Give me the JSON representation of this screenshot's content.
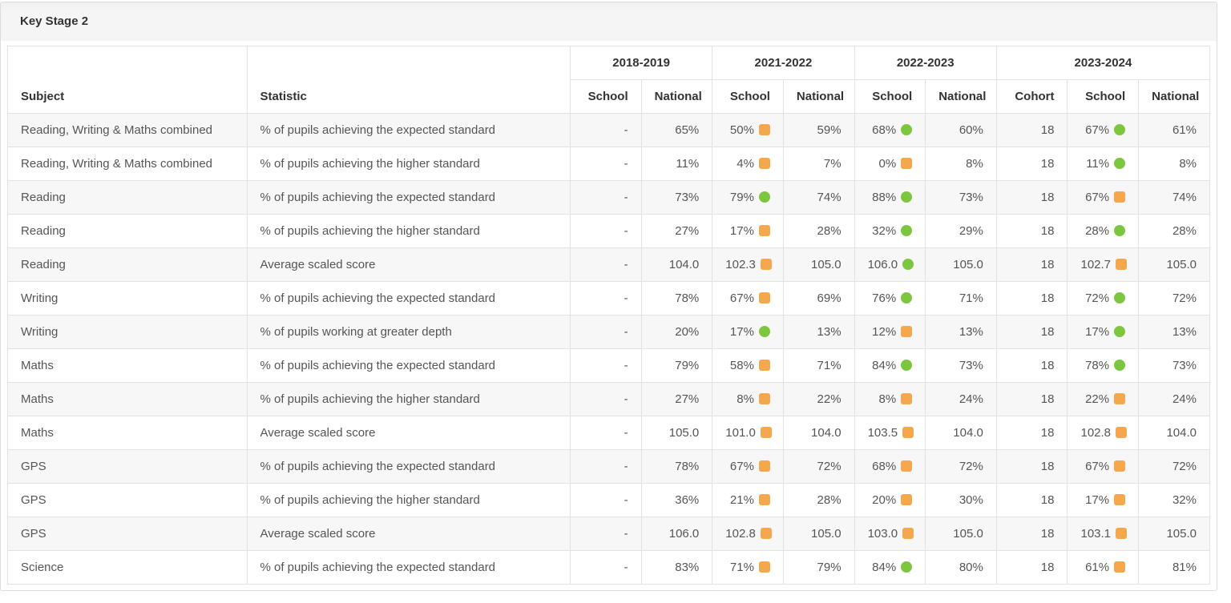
{
  "title": "Key Stage 2",
  "colors": {
    "above": "#7dc640",
    "below": "#f5a74d",
    "heading_bg": "#f5f5f6",
    "stripe": "#f7f7f8"
  },
  "table": {
    "subject_header": "Subject",
    "statistic_header": "Statistic",
    "year_groups": [
      {
        "label": "2018-2019",
        "columns": [
          "School",
          "National"
        ]
      },
      {
        "label": "2021-2022",
        "columns": [
          "School",
          "National"
        ]
      },
      {
        "label": "2022-2023",
        "columns": [
          "School",
          "National"
        ]
      },
      {
        "label": "2023-2024",
        "columns": [
          "Cohort",
          "School",
          "National"
        ]
      }
    ],
    "rows": [
      {
        "subject": "Reading, Writing & Maths combined",
        "statistic": "% of pupils achieving the expected standard",
        "cells": [
          {
            "value": "-"
          },
          {
            "value": "65%"
          },
          {
            "value": "50%",
            "marker": "below"
          },
          {
            "value": "59%"
          },
          {
            "value": "68%",
            "marker": "above"
          },
          {
            "value": "60%"
          },
          {
            "value": "18"
          },
          {
            "value": "67%",
            "marker": "above"
          },
          {
            "value": "61%"
          }
        ]
      },
      {
        "subject": "Reading, Writing & Maths combined",
        "statistic": "% of pupils achieving the higher standard",
        "cells": [
          {
            "value": "-"
          },
          {
            "value": "11%"
          },
          {
            "value": "4%",
            "marker": "below"
          },
          {
            "value": "7%"
          },
          {
            "value": "0%",
            "marker": "below"
          },
          {
            "value": "8%"
          },
          {
            "value": "18"
          },
          {
            "value": "11%",
            "marker": "above"
          },
          {
            "value": "8%"
          }
        ]
      },
      {
        "subject": "Reading",
        "statistic": "% of pupils achieving the expected standard",
        "cells": [
          {
            "value": "-"
          },
          {
            "value": "73%"
          },
          {
            "value": "79%",
            "marker": "above"
          },
          {
            "value": "74%"
          },
          {
            "value": "88%",
            "marker": "above"
          },
          {
            "value": "73%"
          },
          {
            "value": "18"
          },
          {
            "value": "67%",
            "marker": "below"
          },
          {
            "value": "74%"
          }
        ]
      },
      {
        "subject": "Reading",
        "statistic": "% of pupils achieving the higher standard",
        "cells": [
          {
            "value": "-"
          },
          {
            "value": "27%"
          },
          {
            "value": "17%",
            "marker": "below"
          },
          {
            "value": "28%"
          },
          {
            "value": "32%",
            "marker": "above"
          },
          {
            "value": "29%"
          },
          {
            "value": "18"
          },
          {
            "value": "28%",
            "marker": "above"
          },
          {
            "value": "28%"
          }
        ]
      },
      {
        "subject": "Reading",
        "statistic": "Average scaled score",
        "cells": [
          {
            "value": "-"
          },
          {
            "value": "104.0"
          },
          {
            "value": "102.3",
            "marker": "below"
          },
          {
            "value": "105.0"
          },
          {
            "value": "106.0",
            "marker": "above"
          },
          {
            "value": "105.0"
          },
          {
            "value": "18"
          },
          {
            "value": "102.7",
            "marker": "below"
          },
          {
            "value": "105.0"
          }
        ]
      },
      {
        "subject": "Writing",
        "statistic": "% of pupils achieving the expected standard",
        "cells": [
          {
            "value": "-"
          },
          {
            "value": "78%"
          },
          {
            "value": "67%",
            "marker": "below"
          },
          {
            "value": "69%"
          },
          {
            "value": "76%",
            "marker": "above"
          },
          {
            "value": "71%"
          },
          {
            "value": "18"
          },
          {
            "value": "72%",
            "marker": "above"
          },
          {
            "value": "72%"
          }
        ]
      },
      {
        "subject": "Writing",
        "statistic": "% of pupils working at greater depth",
        "cells": [
          {
            "value": "-"
          },
          {
            "value": "20%"
          },
          {
            "value": "17%",
            "marker": "above"
          },
          {
            "value": "13%"
          },
          {
            "value": "12%",
            "marker": "below"
          },
          {
            "value": "13%"
          },
          {
            "value": "18"
          },
          {
            "value": "17%",
            "marker": "above"
          },
          {
            "value": "13%"
          }
        ]
      },
      {
        "subject": "Maths",
        "statistic": "% of pupils achieving the expected standard",
        "cells": [
          {
            "value": "-"
          },
          {
            "value": "79%"
          },
          {
            "value": "58%",
            "marker": "below"
          },
          {
            "value": "71%"
          },
          {
            "value": "84%",
            "marker": "above"
          },
          {
            "value": "73%"
          },
          {
            "value": "18"
          },
          {
            "value": "78%",
            "marker": "above"
          },
          {
            "value": "73%"
          }
        ]
      },
      {
        "subject": "Maths",
        "statistic": "% of pupils achieving the higher standard",
        "cells": [
          {
            "value": "-"
          },
          {
            "value": "27%"
          },
          {
            "value": "8%",
            "marker": "below"
          },
          {
            "value": "22%"
          },
          {
            "value": "8%",
            "marker": "below"
          },
          {
            "value": "24%"
          },
          {
            "value": "18"
          },
          {
            "value": "22%",
            "marker": "below"
          },
          {
            "value": "24%"
          }
        ]
      },
      {
        "subject": "Maths",
        "statistic": "Average scaled score",
        "cells": [
          {
            "value": "-"
          },
          {
            "value": "105.0"
          },
          {
            "value": "101.0",
            "marker": "below"
          },
          {
            "value": "104.0"
          },
          {
            "value": "103.5",
            "marker": "below"
          },
          {
            "value": "104.0"
          },
          {
            "value": "18"
          },
          {
            "value": "102.8",
            "marker": "below"
          },
          {
            "value": "104.0"
          }
        ]
      },
      {
        "subject": "GPS",
        "statistic": "% of pupils achieving the expected standard",
        "cells": [
          {
            "value": "-"
          },
          {
            "value": "78%"
          },
          {
            "value": "67%",
            "marker": "below"
          },
          {
            "value": "72%"
          },
          {
            "value": "68%",
            "marker": "below"
          },
          {
            "value": "72%"
          },
          {
            "value": "18"
          },
          {
            "value": "67%",
            "marker": "below"
          },
          {
            "value": "72%"
          }
        ]
      },
      {
        "subject": "GPS",
        "statistic": "% of pupils achieving the higher standard",
        "cells": [
          {
            "value": "-"
          },
          {
            "value": "36%"
          },
          {
            "value": "21%",
            "marker": "below"
          },
          {
            "value": "28%"
          },
          {
            "value": "20%",
            "marker": "below"
          },
          {
            "value": "30%"
          },
          {
            "value": "18"
          },
          {
            "value": "17%",
            "marker": "below"
          },
          {
            "value": "32%"
          }
        ]
      },
      {
        "subject": "GPS",
        "statistic": "Average scaled score",
        "cells": [
          {
            "value": "-"
          },
          {
            "value": "106.0"
          },
          {
            "value": "102.8",
            "marker": "below"
          },
          {
            "value": "105.0"
          },
          {
            "value": "103.0",
            "marker": "below"
          },
          {
            "value": "105.0"
          },
          {
            "value": "18"
          },
          {
            "value": "103.1",
            "marker": "below"
          },
          {
            "value": "105.0"
          }
        ]
      },
      {
        "subject": "Science",
        "statistic": "% of pupils achieving the expected standard",
        "cells": [
          {
            "value": "-"
          },
          {
            "value": "83%"
          },
          {
            "value": "71%",
            "marker": "below"
          },
          {
            "value": "79%"
          },
          {
            "value": "84%",
            "marker": "above"
          },
          {
            "value": "80%"
          },
          {
            "value": "18"
          },
          {
            "value": "61%",
            "marker": "below"
          },
          {
            "value": "81%"
          }
        ]
      }
    ]
  }
}
